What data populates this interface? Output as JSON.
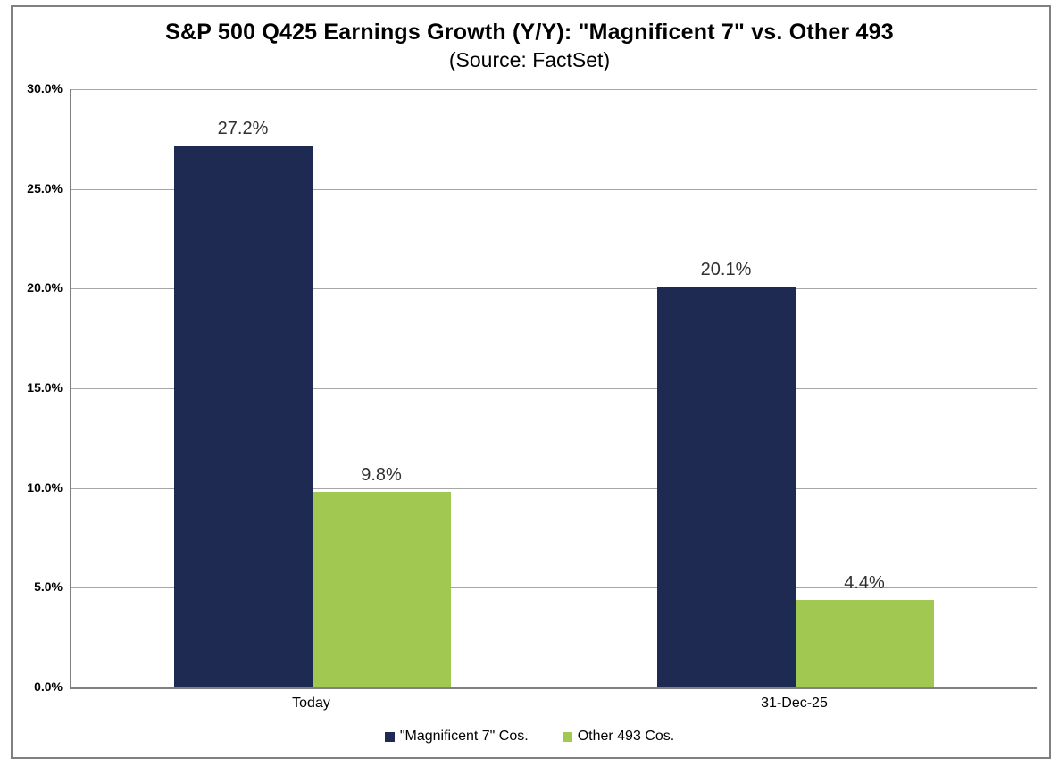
{
  "chart_data": {
    "type": "bar",
    "title": "S&P 500 Q425 Earnings Growth (Y/Y): \"Magnificent 7\" vs. Other 493",
    "subtitle": "(Source: FactSet)",
    "categories": [
      "Today",
      "31-Dec-25"
    ],
    "series": [
      {
        "name": "\"Magnificent 7\" Cos.",
        "color": "#1F2A52",
        "values": [
          27.2,
          20.1
        ],
        "labels": [
          "27.2%",
          "20.1%"
        ]
      },
      {
        "name": "Other 493 Cos.",
        "color": "#A1C952",
        "values": [
          9.8,
          4.4
        ],
        "labels": [
          "9.8%",
          "4.4%"
        ]
      }
    ],
    "xlabel": "",
    "ylabel": "",
    "ylim": [
      0,
      30
    ],
    "yticks": {
      "values": [
        0,
        5,
        10,
        15,
        20,
        25,
        30
      ],
      "labels": [
        "0.0%",
        "5.0%",
        "10.0%",
        "15.0%",
        "20.0%",
        "25.0%",
        "30.0%"
      ]
    },
    "grid": "horizontal",
    "legend_position": "bottom"
  }
}
